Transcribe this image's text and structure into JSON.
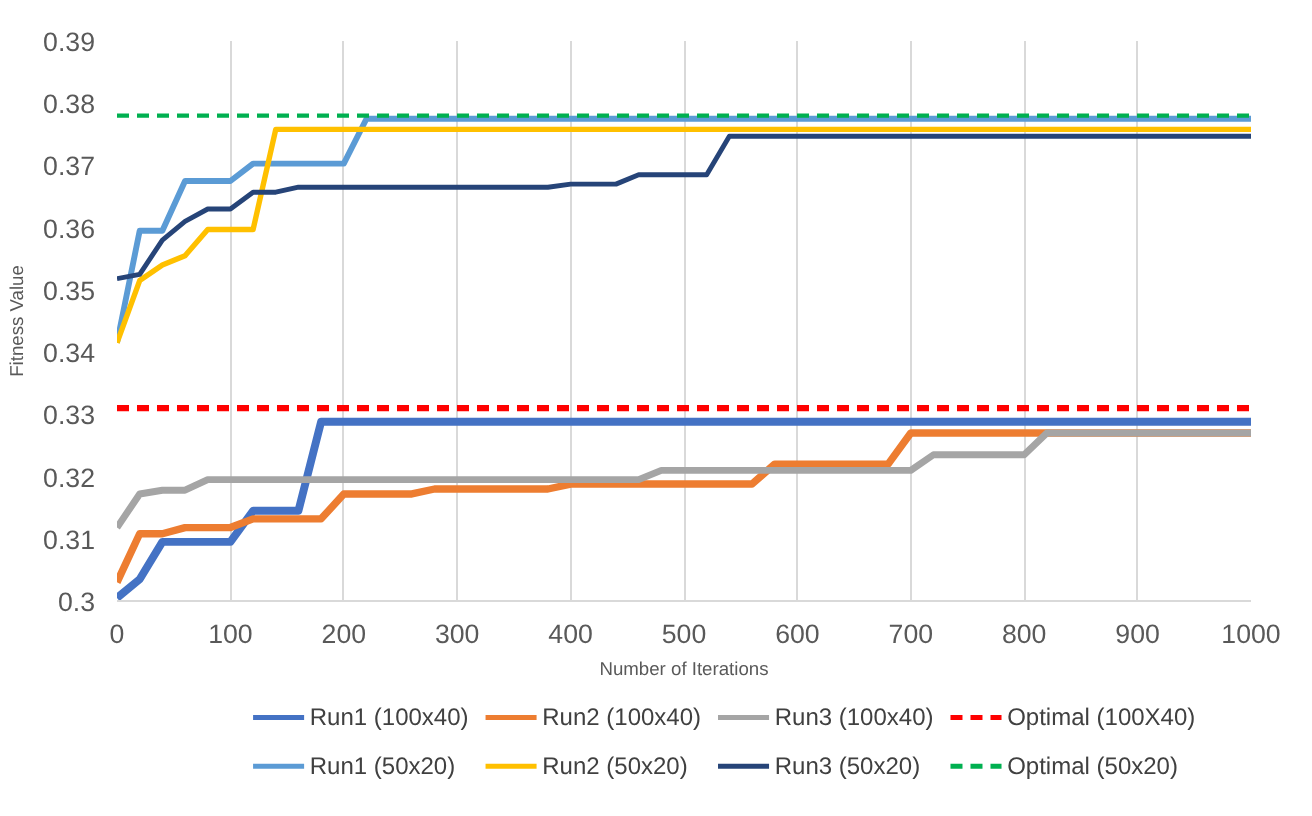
{
  "chart_data": {
    "type": "line",
    "xlabel": "Number of Iterations",
    "ylabel": "Fitness Value",
    "xlim": [
      0,
      1000
    ],
    "ylim": [
      0.3,
      0.39
    ],
    "xticks": [
      0,
      100,
      200,
      300,
      400,
      500,
      600,
      700,
      800,
      900,
      1000
    ],
    "yticks": [
      {
        "value": 0.3,
        "label": "0.3"
      },
      0.31,
      0.32,
      0.33,
      0.34,
      0.35,
      0.36,
      0.37,
      0.38,
      0.39
    ],
    "grid": "x",
    "legend": "bottom",
    "line_style": "solid",
    "marker": "none",
    "series": [
      {
        "name": "Run1 (100x40)",
        "color": "#4472c4",
        "x": [
          0,
          20,
          40,
          100,
          120,
          160,
          180,
          1000
        ],
        "values": [
          0.3005,
          0.3035,
          0.3095,
          0.3095,
          0.3145,
          0.3145,
          0.3288,
          0.3288
        ]
      },
      {
        "name": "Run2 (100x40)",
        "color": "#ed7d31",
        "x": [
          0,
          20,
          40,
          60,
          100,
          120,
          180,
          200,
          260,
          280,
          380,
          400,
          560,
          580,
          680,
          700,
          1000
        ],
        "values": [
          0.303,
          0.3108,
          0.3108,
          0.3118,
          0.3118,
          0.3132,
          0.3132,
          0.3172,
          0.3172,
          0.318,
          0.318,
          0.3188,
          0.3188,
          0.322,
          0.322,
          0.327,
          0.327
        ]
      },
      {
        "name": "Run3 (100x40)",
        "color": "#a5a5a5",
        "x": [
          0,
          20,
          40,
          60,
          80,
          460,
          480,
          700,
          720,
          800,
          820,
          1000
        ],
        "values": [
          0.3118,
          0.3172,
          0.3178,
          0.3178,
          0.3195,
          0.3195,
          0.321,
          0.321,
          0.3235,
          0.3235,
          0.327,
          0.327
        ]
      },
      {
        "name": "Optimal (100X40)",
        "color": "#ff0000",
        "line_style": "dashed",
        "x": [
          0,
          1000
        ],
        "values": [
          0.331,
          0.331
        ]
      },
      {
        "name": "Run1 (50x20)",
        "color": "#5b9bd5",
        "x": [
          0,
          20,
          40,
          60,
          100,
          120,
          200,
          220,
          1000
        ],
        "values": [
          0.3415,
          0.3595,
          0.3595,
          0.3675,
          0.3675,
          0.3703,
          0.3703,
          0.3775,
          0.3775
        ]
      },
      {
        "name": "Run2 (50x20)",
        "color": "#ffc000",
        "x": [
          0,
          20,
          40,
          60,
          80,
          120,
          140,
          1000
        ],
        "values": [
          0.3415,
          0.3515,
          0.354,
          0.3555,
          0.3597,
          0.3597,
          0.3758,
          0.3758
        ]
      },
      {
        "name": "Run3 (50x20)",
        "color": "#264478",
        "x": [
          0,
          20,
          40,
          60,
          80,
          100,
          120,
          140,
          160,
          380,
          400,
          440,
          460,
          520,
          540,
          1000
        ],
        "values": [
          0.3518,
          0.3525,
          0.358,
          0.361,
          0.363,
          0.363,
          0.3657,
          0.3657,
          0.3665,
          0.3665,
          0.367,
          0.367,
          0.3685,
          0.3685,
          0.3747,
          0.3747
        ]
      },
      {
        "name": "Optimal (50x20)",
        "color": "#00b050",
        "line_style": "dashed",
        "x": [
          0,
          1000
        ],
        "values": [
          0.378,
          0.378
        ]
      }
    ]
  }
}
